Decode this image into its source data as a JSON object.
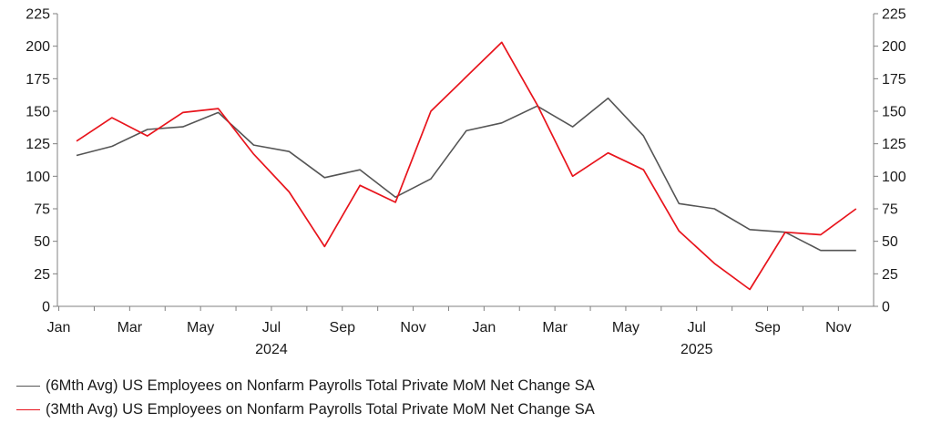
{
  "chart_data": {
    "type": "line",
    "title": "",
    "xlabel": "",
    "ylabel": "",
    "ylim": [
      0,
      225
    ],
    "y_ticks": [
      "0",
      "25",
      "50",
      "75",
      "100",
      "125",
      "150",
      "175",
      "200",
      "225"
    ],
    "y_tick_values": [
      0,
      25,
      50,
      75,
      100,
      125,
      150,
      175,
      200,
      225
    ],
    "x_tick_labels": [
      "Jan",
      "Mar",
      "May",
      "Jul",
      "Sep",
      "Nov",
      "Jan",
      "Mar",
      "May",
      "Jul",
      "Sep",
      "Nov"
    ],
    "x_tick_index": [
      0,
      2,
      4,
      6,
      8,
      10,
      12,
      14,
      16,
      18,
      20,
      22
    ],
    "year_labels": [
      {
        "label": "2024",
        "index": 6
      },
      {
        "label": "2025",
        "index": 18
      }
    ],
    "months": [
      "Jan 2024",
      "Feb 2024",
      "Mar 2024",
      "Apr 2024",
      "May 2024",
      "Jun 2024",
      "Jul 2024",
      "Aug 2024",
      "Sep 2024",
      "Oct 2024",
      "Nov 2024",
      "Dec 2024",
      "Jan 2025",
      "Feb 2025",
      "Mar 2025",
      "Apr 2025",
      "May 2025",
      "Jun 2025",
      "Jul 2025",
      "Aug 2025",
      "Sep 2025",
      "Oct 2025",
      "Nov 2025"
    ],
    "series": [
      {
        "name": "(6Mth Avg) US Employees on Nonfarm Payrolls Total Private MoM Net Change SA",
        "color": "#555555",
        "values": [
          116,
          123,
          136,
          138,
          149,
          124,
          119,
          99,
          105,
          84,
          98,
          135,
          141,
          154,
          138,
          160,
          131,
          79,
          75,
          59,
          57,
          43,
          43
        ]
      },
      {
        "name": "(3Mth Avg) US Employees on Nonfarm Payrolls Total Private MoM Net Change SA",
        "color": "#e8141c",
        "values": [
          127,
          145,
          131,
          149,
          152,
          117,
          88,
          46,
          93,
          80,
          150,
          null,
          203,
          155,
          100,
          118,
          105,
          58,
          33,
          13,
          57,
          55,
          75
        ]
      }
    ],
    "legend_position": "bottom-left",
    "grid": false
  }
}
